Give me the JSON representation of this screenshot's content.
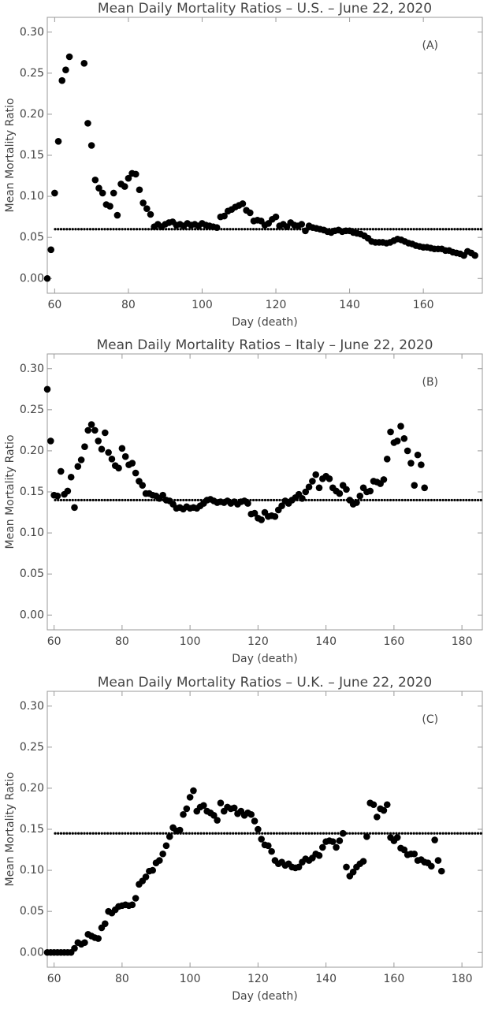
{
  "chart_data": [
    {
      "type": "scatter",
      "title": "Mean Daily Mortality Ratios – U.S. – June 22, 2020",
      "annotation": "(A)",
      "x_label": "Day (death)",
      "y_label": "Mean Mortality Ratio",
      "color": "#000000",
      "mean_line": 0.06,
      "xlim": [
        58,
        176
      ],
      "xticks": [
        60,
        80,
        100,
        120,
        140,
        160
      ],
      "ylim": [
        -0.018,
        0.318
      ],
      "yticks": [
        {
          "value": 0,
          "label": "0.00"
        },
        {
          "value": 0.05,
          "label": "0.05"
        },
        {
          "value": 0.1,
          "label": "0.10"
        },
        {
          "value": 0.15,
          "label": "0.15"
        },
        {
          "value": 0.2,
          "label": "0.20"
        },
        {
          "value": 0.25,
          "label": "0.25"
        },
        {
          "value": 0.3,
          "label": "0.30"
        }
      ],
      "x": [
        58,
        59,
        60,
        61,
        62,
        63,
        64,
        68,
        69,
        70,
        71,
        72,
        73,
        74,
        75,
        76,
        77,
        78,
        79,
        80,
        81,
        82,
        83,
        84,
        85,
        86,
        87,
        88,
        89,
        90,
        91,
        92,
        93,
        94,
        95,
        96,
        97,
        98,
        99,
        100,
        101,
        102,
        103,
        104,
        105,
        106,
        107,
        108,
        109,
        110,
        111,
        112,
        113,
        114,
        115,
        116,
        117,
        118,
        119,
        120,
        121,
        122,
        123,
        124,
        125,
        126,
        127,
        128,
        129,
        130,
        131,
        132,
        133,
        134,
        135,
        136,
        137,
        138,
        139,
        140,
        141,
        142,
        143,
        144,
        145,
        146,
        147,
        148,
        149,
        150,
        151,
        152,
        153,
        154,
        155,
        156,
        157,
        158,
        159,
        160,
        161,
        162,
        163,
        164,
        165,
        166,
        167,
        168,
        169,
        170,
        171,
        172,
        173,
        174
      ],
      "values": [
        0.0,
        0.035,
        0.104,
        0.167,
        0.241,
        0.254,
        0.27,
        0.262,
        0.189,
        0.162,
        0.12,
        0.11,
        0.104,
        0.09,
        0.088,
        0.104,
        0.077,
        0.115,
        0.112,
        0.122,
        0.128,
        0.127,
        0.108,
        0.092,
        0.085,
        0.078,
        0.063,
        0.066,
        0.063,
        0.066,
        0.068,
        0.069,
        0.065,
        0.066,
        0.064,
        0.067,
        0.065,
        0.066,
        0.064,
        0.067,
        0.065,
        0.064,
        0.063,
        0.062,
        0.075,
        0.076,
        0.082,
        0.084,
        0.087,
        0.089,
        0.091,
        0.083,
        0.08,
        0.07,
        0.071,
        0.07,
        0.065,
        0.067,
        0.072,
        0.075,
        0.064,
        0.066,
        0.063,
        0.068,
        0.065,
        0.064,
        0.066,
        0.058,
        0.064,
        0.062,
        0.061,
        0.06,
        0.059,
        0.057,
        0.056,
        0.058,
        0.059,
        0.057,
        0.058,
        0.058,
        0.056,
        0.055,
        0.054,
        0.052,
        0.049,
        0.045,
        0.044,
        0.044,
        0.044,
        0.043,
        0.044,
        0.046,
        0.048,
        0.047,
        0.045,
        0.043,
        0.042,
        0.04,
        0.039,
        0.038,
        0.038,
        0.037,
        0.036,
        0.036,
        0.036,
        0.034,
        0.034,
        0.032,
        0.031,
        0.03,
        0.028,
        0.033,
        0.031,
        0.028
      ]
    },
    {
      "type": "scatter",
      "title": "Mean Daily Mortality Ratios – Italy – June 22, 2020",
      "annotation": "(B)",
      "x_label": "Day (death)",
      "y_label": "Mean Mortality Ratio",
      "color": "#000000",
      "mean_line": 0.14,
      "xlim": [
        58,
        186
      ],
      "xticks": [
        60,
        80,
        100,
        120,
        140,
        160,
        180
      ],
      "ylim": [
        -0.018,
        0.318
      ],
      "yticks": [
        {
          "value": 0,
          "label": "0.00"
        },
        {
          "value": 0.05,
          "label": "0.05"
        },
        {
          "value": 0.1,
          "label": "0.10"
        },
        {
          "value": 0.15,
          "label": "0.15"
        },
        {
          "value": 0.2,
          "label": "0.20"
        },
        {
          "value": 0.25,
          "label": "0.25"
        },
        {
          "value": 0.3,
          "label": "0.30"
        }
      ],
      "x": [
        58,
        59,
        60,
        61,
        62,
        63,
        64,
        65,
        66,
        67,
        68,
        69,
        70,
        71,
        72,
        73,
        74,
        75,
        76,
        77,
        78,
        79,
        80,
        81,
        82,
        83,
        84,
        85,
        86,
        87,
        88,
        89,
        90,
        91,
        92,
        93,
        94,
        95,
        96,
        97,
        98,
        99,
        100,
        101,
        102,
        103,
        104,
        105,
        106,
        107,
        108,
        109,
        110,
        111,
        112,
        113,
        114,
        115,
        116,
        117,
        118,
        119,
        120,
        121,
        122,
        123,
        124,
        125,
        126,
        127,
        128,
        129,
        130,
        131,
        132,
        133,
        134,
        135,
        136,
        137,
        138,
        139,
        140,
        141,
        142,
        143,
        144,
        145,
        146,
        147,
        148,
        149,
        150,
        151,
        152,
        153,
        154,
        155,
        156,
        157,
        158,
        159,
        160,
        161,
        162,
        163,
        164,
        165,
        166,
        167,
        168,
        169
      ],
      "values": [
        0.275,
        0.212,
        0.146,
        0.145,
        0.175,
        0.147,
        0.151,
        0.168,
        0.131,
        0.181,
        0.189,
        0.205,
        0.225,
        0.232,
        0.225,
        0.212,
        0.202,
        0.222,
        0.198,
        0.19,
        0.182,
        0.179,
        0.203,
        0.193,
        0.183,
        0.185,
        0.173,
        0.163,
        0.158,
        0.148,
        0.148,
        0.146,
        0.145,
        0.142,
        0.146,
        0.14,
        0.139,
        0.135,
        0.13,
        0.131,
        0.129,
        0.132,
        0.13,
        0.131,
        0.13,
        0.133,
        0.136,
        0.14,
        0.141,
        0.139,
        0.137,
        0.138,
        0.137,
        0.139,
        0.136,
        0.138,
        0.135,
        0.138,
        0.139,
        0.136,
        0.123,
        0.124,
        0.118,
        0.116,
        0.125,
        0.12,
        0.121,
        0.12,
        0.128,
        0.133,
        0.139,
        0.136,
        0.14,
        0.143,
        0.147,
        0.142,
        0.15,
        0.156,
        0.163,
        0.171,
        0.155,
        0.166,
        0.169,
        0.166,
        0.155,
        0.151,
        0.148,
        0.158,
        0.153,
        0.14,
        0.135,
        0.137,
        0.145,
        0.155,
        0.15,
        0.151,
        0.163,
        0.162,
        0.16,
        0.165,
        0.19,
        0.223,
        0.21,
        0.212,
        0.23,
        0.215,
        0.2,
        0.185,
        0.158,
        0.195,
        0.183,
        0.155
      ]
    },
    {
      "type": "scatter",
      "title": "Mean Daily Mortality Ratios – U.K. – June 22, 2020",
      "annotation": "(C)",
      "x_label": "Day (death)",
      "y_label": "Mean Mortality Ratio",
      "color": "#000000",
      "mean_line": 0.145,
      "xlim": [
        58,
        186
      ],
      "xticks": [
        60,
        80,
        100,
        120,
        140,
        160,
        180
      ],
      "ylim": [
        -0.018,
        0.318
      ],
      "yticks": [
        {
          "value": 0,
          "label": "0.00"
        },
        {
          "value": 0.05,
          "label": "0.05"
        },
        {
          "value": 0.1,
          "label": "0.10"
        },
        {
          "value": 0.15,
          "label": "0.15"
        },
        {
          "value": 0.2,
          "label": "0.20"
        },
        {
          "value": 0.25,
          "label": "0.25"
        },
        {
          "value": 0.3,
          "label": "0.30"
        }
      ],
      "x": [
        58,
        59,
        60,
        61,
        62,
        63,
        64,
        65,
        66,
        67,
        68,
        69,
        70,
        71,
        72,
        73,
        74,
        75,
        76,
        77,
        78,
        79,
        80,
        81,
        82,
        83,
        84,
        85,
        86,
        87,
        88,
        89,
        90,
        91,
        92,
        93,
        94,
        95,
        96,
        97,
        98,
        99,
        100,
        101,
        102,
        103,
        104,
        105,
        106,
        107,
        108,
        109,
        110,
        111,
        112,
        113,
        114,
        115,
        116,
        117,
        118,
        119,
        120,
        121,
        122,
        123,
        124,
        125,
        126,
        127,
        128,
        129,
        130,
        131,
        132,
        133,
        134,
        135,
        136,
        137,
        138,
        139,
        140,
        141,
        142,
        143,
        144,
        145,
        146,
        147,
        148,
        149,
        150,
        151,
        152,
        153,
        154,
        155,
        156,
        157,
        158,
        159,
        160,
        161,
        162,
        163,
        164,
        165,
        166,
        167,
        168,
        169,
        170,
        171,
        172,
        173,
        174
      ],
      "values": [
        0.0,
        0.0,
        0.0,
        0.0,
        0.0,
        0.0,
        0.0,
        0.0,
        0.005,
        0.012,
        0.01,
        0.012,
        0.022,
        0.02,
        0.018,
        0.017,
        0.03,
        0.035,
        0.05,
        0.048,
        0.052,
        0.056,
        0.057,
        0.058,
        0.057,
        0.058,
        0.066,
        0.083,
        0.087,
        0.092,
        0.099,
        0.1,
        0.109,
        0.112,
        0.12,
        0.13,
        0.141,
        0.152,
        0.148,
        0.149,
        0.168,
        0.175,
        0.189,
        0.197,
        0.172,
        0.177,
        0.179,
        0.172,
        0.17,
        0.167,
        0.161,
        0.182,
        0.172,
        0.177,
        0.175,
        0.176,
        0.169,
        0.172,
        0.167,
        0.17,
        0.168,
        0.16,
        0.15,
        0.138,
        0.131,
        0.13,
        0.123,
        0.112,
        0.108,
        0.11,
        0.106,
        0.108,
        0.104,
        0.103,
        0.104,
        0.11,
        0.114,
        0.112,
        0.115,
        0.12,
        0.118,
        0.128,
        0.135,
        0.136,
        0.135,
        0.128,
        0.136,
        0.145,
        0.104,
        0.093,
        0.098,
        0.104,
        0.108,
        0.111,
        0.141,
        0.182,
        0.18,
        0.165,
        0.175,
        0.173,
        0.18,
        0.14,
        0.136,
        0.14,
        0.127,
        0.125,
        0.119,
        0.12,
        0.12,
        0.112,
        0.113,
        0.11,
        0.109,
        0.105,
        0.137,
        0.112,
        0.099
      ]
    }
  ]
}
